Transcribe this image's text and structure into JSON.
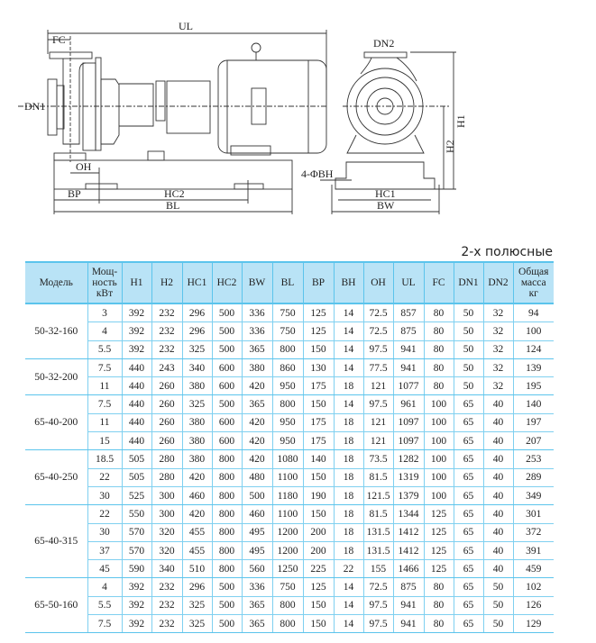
{
  "drawing": {
    "labels": {
      "UL": "UL",
      "FC": "FC",
      "DN1": "DN1",
      "OH": "OH",
      "BP": "BP",
      "HC2": "HC2",
      "BL": "BL",
      "DN2": "DN2",
      "H1": "H1",
      "H2": "H2",
      "BH": "4-ΦBH",
      "HC1": "HC1",
      "BW": "BW"
    }
  },
  "subtitle": "2-х полюсные",
  "table": {
    "headers": [
      "Модель",
      "Мощ-\nность\nкВт",
      "H1",
      "H2",
      "HC1",
      "HC2",
      "BW",
      "BL",
      "BP",
      "BH",
      "OH",
      "UL",
      "FC",
      "DN1",
      "DN2",
      "Общая\nмасса\nкг"
    ],
    "groups": [
      {
        "model": "50-32-160",
        "rows": [
          [
            "3",
            "392",
            "232",
            "296",
            "500",
            "336",
            "750",
            "125",
            "14",
            "72.5",
            "857",
            "80",
            "50",
            "32",
            "94"
          ],
          [
            "4",
            "392",
            "232",
            "296",
            "500",
            "336",
            "750",
            "125",
            "14",
            "72.5",
            "875",
            "80",
            "50",
            "32",
            "100"
          ],
          [
            "5.5",
            "392",
            "232",
            "325",
            "500",
            "365",
            "800",
            "150",
            "14",
            "97.5",
            "941",
            "80",
            "50",
            "32",
            "124"
          ]
        ]
      },
      {
        "model": "50-32-200",
        "rows": [
          [
            "7.5",
            "440",
            "243",
            "340",
            "600",
            "380",
            "860",
            "130",
            "14",
            "77.5",
            "941",
            "80",
            "50",
            "32",
            "139"
          ],
          [
            "11",
            "440",
            "260",
            "380",
            "600",
            "420",
            "950",
            "175",
            "18",
            "121",
            "1077",
            "80",
            "50",
            "32",
            "195"
          ]
        ]
      },
      {
        "model": "65-40-200",
        "rows": [
          [
            "7.5",
            "440",
            "260",
            "325",
            "500",
            "365",
            "800",
            "150",
            "14",
            "97.5",
            "961",
            "100",
            "65",
            "40",
            "140"
          ],
          [
            "11",
            "440",
            "260",
            "380",
            "600",
            "420",
            "950",
            "175",
            "18",
            "121",
            "1097",
            "100",
            "65",
            "40",
            "197"
          ],
          [
            "15",
            "440",
            "260",
            "380",
            "600",
            "420",
            "950",
            "175",
            "18",
            "121",
            "1097",
            "100",
            "65",
            "40",
            "207"
          ]
        ]
      },
      {
        "model": "65-40-250",
        "rows": [
          [
            "18.5",
            "505",
            "280",
            "380",
            "800",
            "420",
            "1080",
            "140",
            "18",
            "73.5",
            "1282",
            "100",
            "65",
            "40",
            "253"
          ],
          [
            "22",
            "505",
            "280",
            "420",
            "800",
            "480",
            "1100",
            "150",
            "18",
            "81.5",
            "1319",
            "100",
            "65",
            "40",
            "289"
          ],
          [
            "30",
            "525",
            "300",
            "460",
            "800",
            "500",
            "1180",
            "190",
            "18",
            "121.5",
            "1379",
            "100",
            "65",
            "40",
            "349"
          ]
        ]
      },
      {
        "model": "65-40-315",
        "rows": [
          [
            "22",
            "550",
            "300",
            "420",
            "800",
            "460",
            "1100",
            "150",
            "18",
            "81.5",
            "1344",
            "125",
            "65",
            "40",
            "301"
          ],
          [
            "30",
            "570",
            "320",
            "455",
            "800",
            "495",
            "1200",
            "200",
            "18",
            "131.5",
            "1412",
            "125",
            "65",
            "40",
            "372"
          ],
          [
            "37",
            "570",
            "320",
            "455",
            "800",
            "495",
            "1200",
            "200",
            "18",
            "131.5",
            "1412",
            "125",
            "65",
            "40",
            "391"
          ],
          [
            "45",
            "590",
            "340",
            "510",
            "800",
            "560",
            "1250",
            "225",
            "22",
            "155",
            "1466",
            "125",
            "65",
            "40",
            "459"
          ]
        ]
      },
      {
        "model": "65-50-160",
        "rows": [
          [
            "4",
            "392",
            "232",
            "296",
            "500",
            "336",
            "750",
            "125",
            "14",
            "72.5",
            "875",
            "80",
            "65",
            "50",
            "102"
          ],
          [
            "5.5",
            "392",
            "232",
            "325",
            "500",
            "365",
            "800",
            "150",
            "14",
            "97.5",
            "941",
            "80",
            "65",
            "50",
            "126"
          ],
          [
            "7.5",
            "392",
            "232",
            "325",
            "500",
            "365",
            "800",
            "150",
            "14",
            "97.5",
            "941",
            "80",
            "65",
            "50",
            "129"
          ]
        ]
      }
    ]
  }
}
